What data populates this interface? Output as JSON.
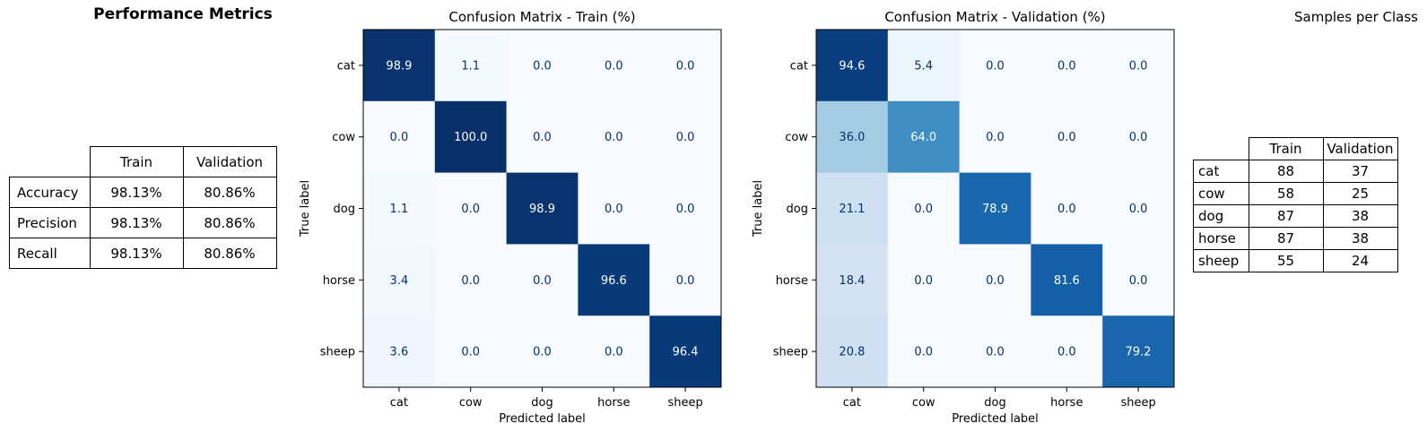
{
  "metrics_panel": {
    "title": "Performance Metrics",
    "columns": [
      "Train",
      "Validation"
    ],
    "rows": [
      {
        "label": "Accuracy",
        "train": "98.13%",
        "validation": "80.86%"
      },
      {
        "label": "Precision",
        "train": "98.13%",
        "validation": "80.86%"
      },
      {
        "label": "Recall",
        "train": "98.13%",
        "validation": "80.86%"
      }
    ]
  },
  "samples_panel": {
    "title": "Samples per Class",
    "columns": [
      "Train",
      "Validation"
    ],
    "rows": [
      {
        "label": "cat",
        "train": "88",
        "validation": "37"
      },
      {
        "label": "cow",
        "train": "58",
        "validation": "25"
      },
      {
        "label": "dog",
        "train": "87",
        "validation": "38"
      },
      {
        "label": "horse",
        "train": "87",
        "validation": "38"
      },
      {
        "label": "sheep",
        "train": "55",
        "validation": "24"
      }
    ]
  },
  "chart_data": [
    {
      "type": "heatmap",
      "title": "Confusion Matrix - Train (%)",
      "xlabel": "Predicted label",
      "ylabel": "True label",
      "x_categories": [
        "cat",
        "cow",
        "dog",
        "horse",
        "sheep"
      ],
      "y_categories": [
        "cat",
        "cow",
        "dog",
        "horse",
        "sheep"
      ],
      "colormap": "Blues",
      "value_range": [
        0,
        100
      ],
      "values": [
        [
          98.9,
          1.1,
          0.0,
          0.0,
          0.0
        ],
        [
          0.0,
          100.0,
          0.0,
          0.0,
          0.0
        ],
        [
          1.1,
          0.0,
          98.9,
          0.0,
          0.0
        ],
        [
          3.4,
          0.0,
          0.0,
          96.6,
          0.0
        ],
        [
          3.6,
          0.0,
          0.0,
          0.0,
          96.4
        ]
      ]
    },
    {
      "type": "heatmap",
      "title": "Confusion Matrix - Validation (%)",
      "xlabel": "Predicted label",
      "ylabel": "True label",
      "x_categories": [
        "cat",
        "cow",
        "dog",
        "horse",
        "sheep"
      ],
      "y_categories": [
        "cat",
        "cow",
        "dog",
        "horse",
        "sheep"
      ],
      "colormap": "Blues",
      "value_range": [
        0,
        100
      ],
      "values": [
        [
          94.6,
          5.4,
          0.0,
          0.0,
          0.0
        ],
        [
          36.0,
          64.0,
          0.0,
          0.0,
          0.0
        ],
        [
          21.1,
          0.0,
          78.9,
          0.0,
          0.0
        ],
        [
          18.4,
          0.0,
          0.0,
          81.6,
          0.0
        ],
        [
          20.8,
          0.0,
          0.0,
          0.0,
          79.2
        ]
      ]
    }
  ]
}
